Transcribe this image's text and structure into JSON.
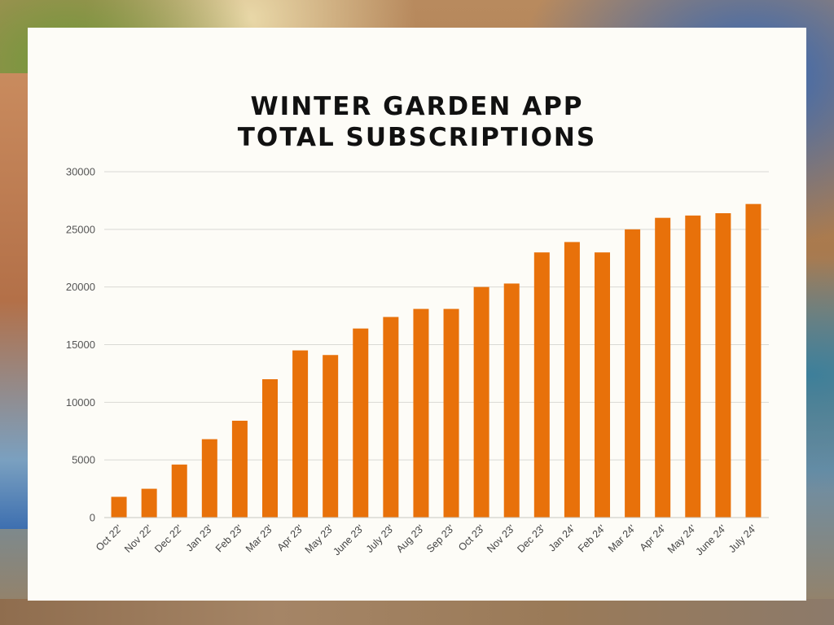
{
  "chart_data": {
    "type": "bar",
    "title_lines": [
      "WINTER GARDEN APP",
      "TOTAL SUBSCRIPTIONS"
    ],
    "categories": [
      "Oct 22'",
      "Nov 22'",
      "Dec 22'",
      "Jan 23'",
      "Feb 23'",
      "Mar 23'",
      "Apr 23'",
      "May 23'",
      "June 23'",
      "July 23'",
      "Aug 23'",
      "Sep 23'",
      "Oct 23'",
      "Nov 23'",
      "Dec 23'",
      "Jan 24'",
      "Feb 24'",
      "Mar 24'",
      "Apr 24'",
      "May 24'",
      "June 24'",
      "July 24'"
    ],
    "values": [
      1800,
      2500,
      4600,
      6800,
      8400,
      12000,
      14500,
      14100,
      16400,
      17400,
      18100,
      18100,
      20000,
      20300,
      23000,
      23900,
      23000,
      25000,
      26000,
      26200,
      26400,
      27200
    ],
    "ylim": [
      0,
      30000
    ],
    "yticks": [
      0,
      5000,
      10000,
      15000,
      20000,
      25000,
      30000
    ],
    "grid": true,
    "bar_color": "#e8710a",
    "grid_color": "#d9d9d4",
    "xlabel": "",
    "ylabel": ""
  }
}
